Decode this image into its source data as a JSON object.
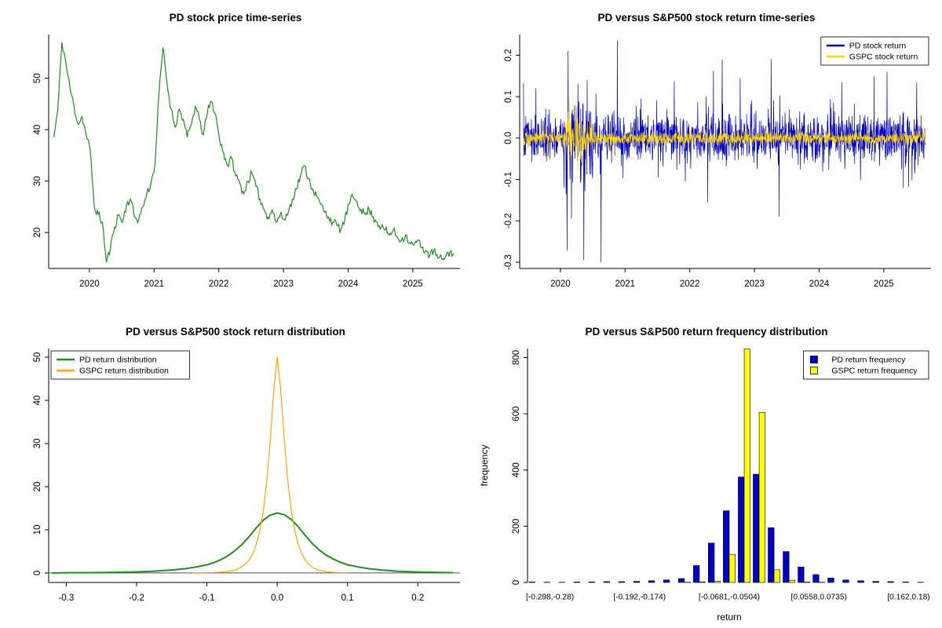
{
  "chart_data": [
    {
      "id": "price",
      "type": "line",
      "title": "PD stock price time-series",
      "color": "#228B22",
      "x0": 2019.45,
      "dx": 0.0625,
      "jitter": 0.8,
      "seed": 11,
      "xlim": [
        2019.37,
        2025.73
      ],
      "ylim": [
        13,
        58.5
      ],
      "xticks": [
        [
          2020,
          "2020"
        ],
        [
          2021,
          "2021"
        ],
        [
          2022,
          "2022"
        ],
        [
          2023,
          "2023"
        ],
        [
          2024,
          "2024"
        ],
        [
          2025,
          "2025"
        ]
      ],
      "yticks": [
        [
          20,
          "20"
        ],
        [
          30,
          "30"
        ],
        [
          40,
          "40"
        ],
        [
          50,
          "50"
        ]
      ],
      "values": [
        38.5,
        44,
        57,
        53,
        48,
        44.5,
        41,
        42.5,
        39,
        36,
        25,
        23.5,
        22,
        14.2,
        17,
        21,
        23.5,
        22,
        25.5,
        26.5,
        23,
        22.5,
        25,
        27.5,
        29.5,
        33,
        47,
        56,
        49,
        44,
        40.5,
        44,
        42,
        38.5,
        41,
        44.5,
        42,
        39,
        43.5,
        45.5,
        43,
        38,
        35.5,
        33,
        34.5,
        31,
        29.5,
        27.5,
        30,
        31.5,
        29,
        26.5,
        24.5,
        23,
        24.5,
        22,
        23.5,
        22.5,
        24,
        26.5,
        28.5,
        31,
        33,
        30.5,
        28.5,
        27,
        25.5,
        24,
        23,
        22,
        21.5,
        20.5,
        22.5,
        25.5,
        27,
        26,
        24.5,
        23.5,
        24.5,
        23,
        22,
        21,
        20.5,
        19.5,
        20.5,
        19,
        18.5,
        19.5,
        18,
        17.5,
        18.5,
        17,
        16.5,
        15.5,
        16.5,
        15,
        14.8,
        15.5,
        16.2,
        15.8
      ]
    },
    {
      "id": "returns",
      "type": "returns",
      "title": "PD versus S&P500 stock return time-series",
      "xstart": 2019.43,
      "xend": 2025.64,
      "n": 1560,
      "covid_window": [
        2020.08,
        2020.5
      ],
      "xlim": [
        2019.37,
        2025.73
      ],
      "ylim": [
        -0.315,
        0.25
      ],
      "xticks": [
        [
          2020,
          "2020"
        ],
        [
          2021,
          "2021"
        ],
        [
          2022,
          "2022"
        ],
        [
          2023,
          "2023"
        ],
        [
          2024,
          "2024"
        ],
        [
          2025,
          "2025"
        ]
      ],
      "yticks": [
        [
          -0.3,
          "-0.3"
        ],
        [
          -0.2,
          "-0.2"
        ],
        [
          -0.1,
          "-0.1"
        ],
        [
          0,
          "0.0"
        ],
        [
          0.1,
          "0.1"
        ],
        [
          0.2,
          "0.2"
        ]
      ],
      "legend_pos": "top-right",
      "series": [
        {
          "name": "PD stock return",
          "color": "#0000CD",
          "sd": 0.027,
          "covid_mult": 2.4,
          "seed": 7,
          "spikes": [
            [
              2019.62,
              0.12
            ],
            [
              2020.12,
              0.21
            ],
            [
              2020.17,
              -0.195
            ],
            [
              2020.63,
              -0.3
            ],
            [
              2020.88,
              0.235
            ],
            [
              2022.28,
              -0.155
            ],
            [
              2022.5,
              0.19
            ],
            [
              2022.78,
              0.145
            ],
            [
              2023.38,
              -0.19
            ],
            [
              2024.35,
              0.135
            ],
            [
              2024.85,
              0.15
            ],
            [
              2025.05,
              0.16
            ],
            [
              2025.3,
              -0.12
            ]
          ]
        },
        {
          "name": "GSPC stock return",
          "color": "#FFD700",
          "sd": 0.008,
          "covid_mult": 3.4,
          "seed": 19,
          "spikes": [
            [
              2020.14,
              0.093
            ],
            [
              2020.16,
              -0.095
            ],
            [
              2020.24,
              0.08
            ],
            [
              2020.27,
              -0.078
            ]
          ]
        }
      ]
    },
    {
      "id": "density",
      "type": "density",
      "title": "PD versus S&P500 stock return distribution",
      "xlim": [
        -0.325,
        0.26
      ],
      "ylim": [
        -2.2,
        52
      ],
      "xticks": [
        [
          -0.3,
          "-0.3"
        ],
        [
          -0.2,
          "-0.2"
        ],
        [
          -0.1,
          "-0.1"
        ],
        [
          0,
          "0.0"
        ],
        [
          0.1,
          "0.1"
        ],
        [
          0.2,
          "0.2"
        ]
      ],
      "yticks": [
        [
          0,
          "0"
        ],
        [
          10,
          "10"
        ],
        [
          20,
          "20"
        ],
        [
          30,
          "30"
        ],
        [
          40,
          "40"
        ],
        [
          50,
          "50"
        ]
      ],
      "baseline_color": "#555555",
      "legend_pos": "top-left",
      "series": [
        {
          "name": "PD return distribution",
          "color": "#228B22",
          "lwd": 2,
          "points": [
            [
              -0.32,
              0
            ],
            [
              -0.3,
              0.05
            ],
            [
              -0.27,
              0.08
            ],
            [
              -0.24,
              0.12
            ],
            [
              -0.21,
              0.2
            ],
            [
              -0.19,
              0.3
            ],
            [
              -0.17,
              0.45
            ],
            [
              -0.15,
              0.7
            ],
            [
              -0.13,
              1
            ],
            [
              -0.115,
              1.4
            ],
            [
              -0.1,
              1.9
            ],
            [
              -0.09,
              2.4
            ],
            [
              -0.08,
              3.1
            ],
            [
              -0.07,
              4
            ],
            [
              -0.06,
              5.2
            ],
            [
              -0.05,
              6.6
            ],
            [
              -0.04,
              8.4
            ],
            [
              -0.03,
              10.4
            ],
            [
              -0.02,
              12.2
            ],
            [
              -0.01,
              13.4
            ],
            [
              0,
              13.9
            ],
            [
              0.01,
              13.5
            ],
            [
              0.02,
              12.4
            ],
            [
              0.03,
              10.7
            ],
            [
              0.04,
              8.7
            ],
            [
              0.05,
              6.8
            ],
            [
              0.06,
              5.3
            ],
            [
              0.07,
              4.1
            ],
            [
              0.08,
              3.2
            ],
            [
              0.09,
              2.5
            ],
            [
              0.1,
              1.9
            ],
            [
              0.115,
              1.4
            ],
            [
              0.13,
              1
            ],
            [
              0.15,
              0.65
            ],
            [
              0.17,
              0.42
            ],
            [
              0.19,
              0.28
            ],
            [
              0.21,
              0.18
            ],
            [
              0.23,
              0.12
            ],
            [
              0.25,
              0.08
            ]
          ]
        },
        {
          "name": "GSPC return distribution",
          "color": "#FFA500",
          "lwd": 1.2,
          "points": [
            [
              -0.12,
              0.02
            ],
            [
              -0.1,
              0.06
            ],
            [
              -0.09,
              0.1
            ],
            [
              -0.08,
              0.18
            ],
            [
              -0.07,
              0.35
            ],
            [
              -0.06,
              0.7
            ],
            [
              -0.055,
              1
            ],
            [
              -0.05,
              1.5
            ],
            [
              -0.045,
              2.1
            ],
            [
              -0.04,
              3
            ],
            [
              -0.035,
              4.4
            ],
            [
              -0.03,
              6.5
            ],
            [
              -0.025,
              9.5
            ],
            [
              -0.02,
              14
            ],
            [
              -0.015,
              21
            ],
            [
              -0.01,
              30.5
            ],
            [
              -0.005,
              42
            ],
            [
              0,
              50
            ],
            [
              0.005,
              42.5
            ],
            [
              0.01,
              31
            ],
            [
              0.015,
              21.5
            ],
            [
              0.02,
              14.5
            ],
            [
              0.025,
              9.8
            ],
            [
              0.03,
              6.6
            ],
            [
              0.035,
              4.5
            ],
            [
              0.04,
              3
            ],
            [
              0.045,
              2
            ],
            [
              0.05,
              1.4
            ],
            [
              0.055,
              0.9
            ],
            [
              0.06,
              0.6
            ],
            [
              0.07,
              0.3
            ],
            [
              0.08,
              0.15
            ],
            [
              0.09,
              0.08
            ],
            [
              0.1,
              0.04
            ]
          ]
        }
      ]
    },
    {
      "id": "frequency",
      "type": "grouped_bar",
      "title": "PD versus S&P500 return frequency distribution",
      "xlabel": "return",
      "ylabel": "frequency",
      "xlim": [
        0,
        27
      ],
      "ylim": [
        0,
        832
      ],
      "yticks": [
        [
          0,
          "0"
        ],
        [
          200,
          "200"
        ],
        [
          400,
          "400"
        ],
        [
          600,
          "600"
        ],
        [
          800,
          "800"
        ]
      ],
      "bin_labels": [
        "[-0.298,-0.28)",
        "[-0.192,-0.174)",
        "[-0.0681,-0.0504)",
        "[0.0558,0.0735)",
        "[0.162,0.18)"
      ],
      "label_bins": [
        1,
        7,
        13,
        19,
        25
      ],
      "legend_pos": "top-right",
      "series": [
        {
          "name": "PD return frequency",
          "color": "#0000CD",
          "values": [
            2,
            1,
            1,
            2,
            2,
            3,
            3,
            4,
            6,
            9,
            14,
            60,
            140,
            255,
            375,
            385,
            195,
            110,
            55,
            28,
            16,
            9,
            6,
            4,
            3,
            2,
            1
          ]
        },
        {
          "name": "GSPC return frequency",
          "color": "#FFFF00",
          "values": [
            0,
            0,
            0,
            0,
            0,
            0,
            0,
            0,
            0,
            0,
            1,
            2,
            5,
            100,
            830,
            605,
            45,
            8,
            2,
            1,
            0,
            0,
            0,
            0,
            0,
            0,
            0
          ]
        }
      ]
    }
  ]
}
